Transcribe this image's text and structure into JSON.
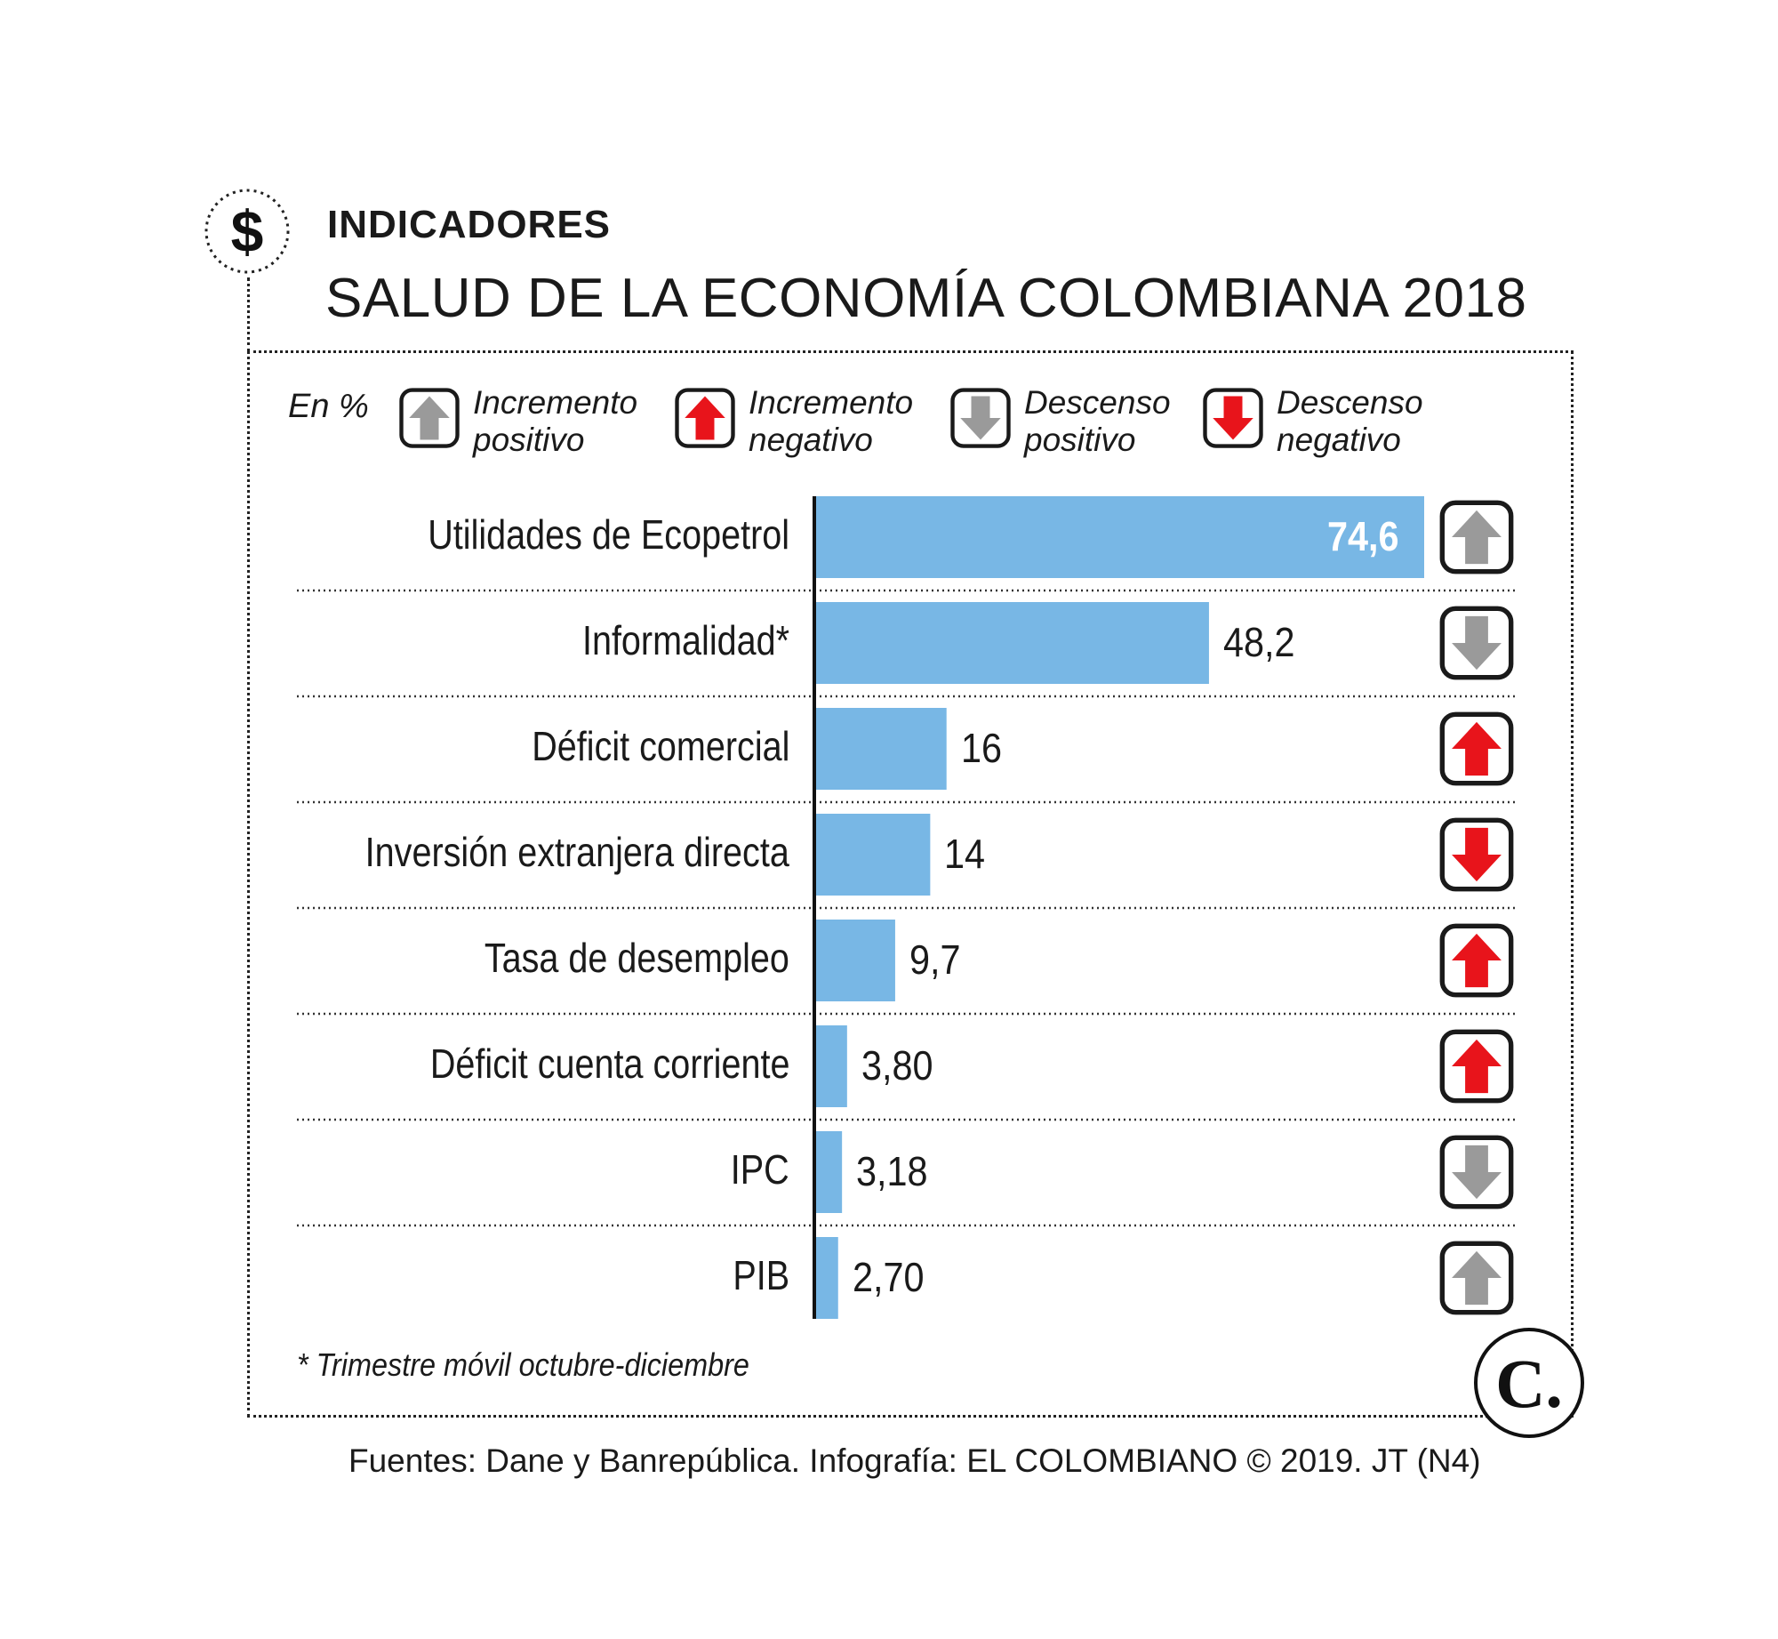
{
  "header": {
    "kicker": "INDICADORES",
    "title": "SALUD DE LA ECONOMÍA COLOMBIANA 2018",
    "badge_symbol": "$"
  },
  "legend": {
    "unit": "En %",
    "items": [
      {
        "key": "up-positive",
        "line1": "Incremento",
        "line2": "positivo",
        "icon": "up-arrow-icon",
        "color": "#9a9a9a"
      },
      {
        "key": "up-negative",
        "line1": "Incremento",
        "line2": "negativo",
        "icon": "up-arrow-icon",
        "color": "#e8141b"
      },
      {
        "key": "down-positive",
        "line1": "Descenso",
        "line2": "positivo",
        "icon": "down-arrow-icon",
        "color": "#9a9a9a"
      },
      {
        "key": "down-negative",
        "line1": "Descenso",
        "line2": "negativo",
        "icon": "down-arrow-icon",
        "color": "#e8141b"
      }
    ]
  },
  "chart_data": {
    "type": "bar",
    "orientation": "horizontal",
    "unit": "%",
    "bar_color": "#78b7e5",
    "xlim": [
      0,
      74.6
    ],
    "grid": false,
    "categories": [
      "Utilidades de Ecopetrol",
      "Informalidad*",
      "Déficit comercial",
      "Inversión extranjera directa",
      "Tasa de desempleo",
      "Déficit cuenta corriente",
      "IPC",
      "PIB"
    ],
    "values": [
      74.6,
      48.2,
      16,
      14,
      9.7,
      3.8,
      3.18,
      2.7
    ],
    "value_labels": [
      "74,6",
      "48,2",
      "16",
      "14",
      "9,7",
      "3,80",
      "3,18",
      "2,70"
    ],
    "trends": [
      "up-positive",
      "down-positive",
      "up-negative",
      "down-negative",
      "up-negative",
      "up-negative",
      "down-positive",
      "up-positive"
    ]
  },
  "footnote": "* Trimestre móvil octubre-diciembre",
  "source": "Fuentes: Dane y Banrepública. Infografía: EL COLOMBIANO © 2019. JT (N4)",
  "logo_letter": "C."
}
